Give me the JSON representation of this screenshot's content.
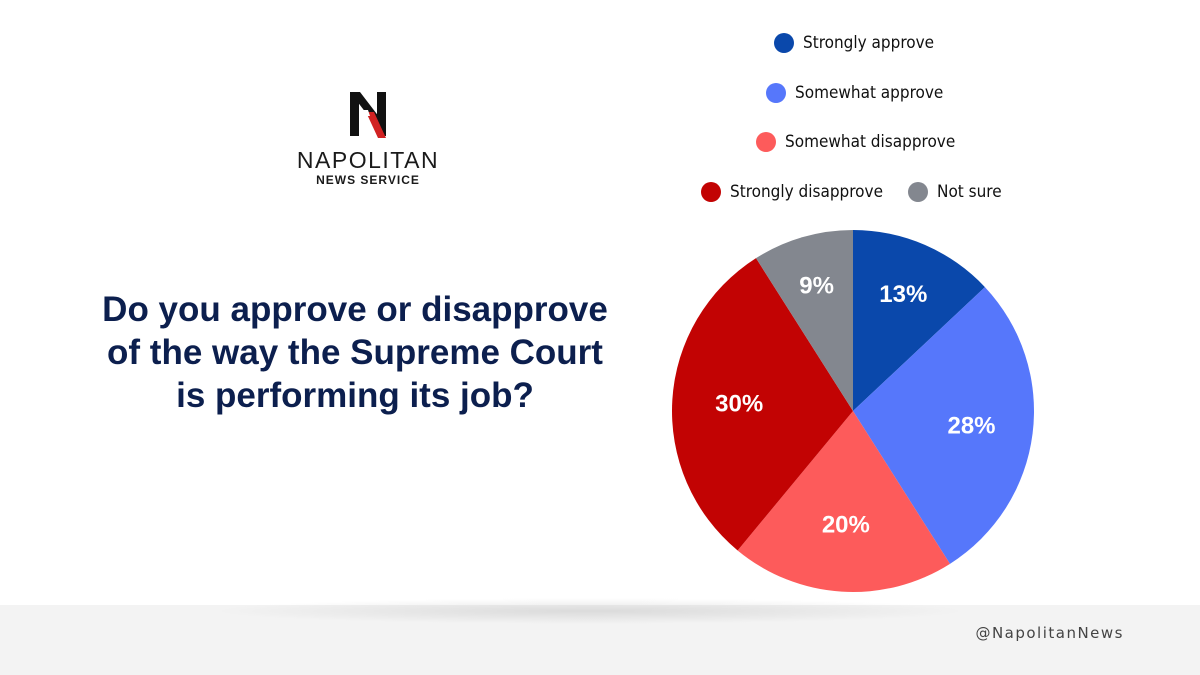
{
  "logo": {
    "name": "NAPOLITAN",
    "sub": "NEWS SERVICE"
  },
  "question": "Do you approve or disapprove of the way the Supreme Court is performing its job?",
  "handle": "@NapolitanNews",
  "chart_data": {
    "type": "pie",
    "title": "Do you approve or disapprove of the way the Supreme Court is performing its job?",
    "legend_placement": "top",
    "slices": [
      {
        "label": "Strongly approve",
        "value": 13,
        "display": "13%",
        "color": "#0a48ab"
      },
      {
        "label": "Somewhat approve",
        "value": 28,
        "display": "28%",
        "color": "#5677fb"
      },
      {
        "label": "Somewhat disapprove",
        "value": 20,
        "display": "20%",
        "color": "#fd5b5b"
      },
      {
        "label": "Strongly disapprove",
        "value": 30,
        "display": "30%",
        "color": "#c20303"
      },
      {
        "label": "Not sure",
        "value": 9,
        "display": "9%",
        "color": "#83878f"
      }
    ]
  }
}
